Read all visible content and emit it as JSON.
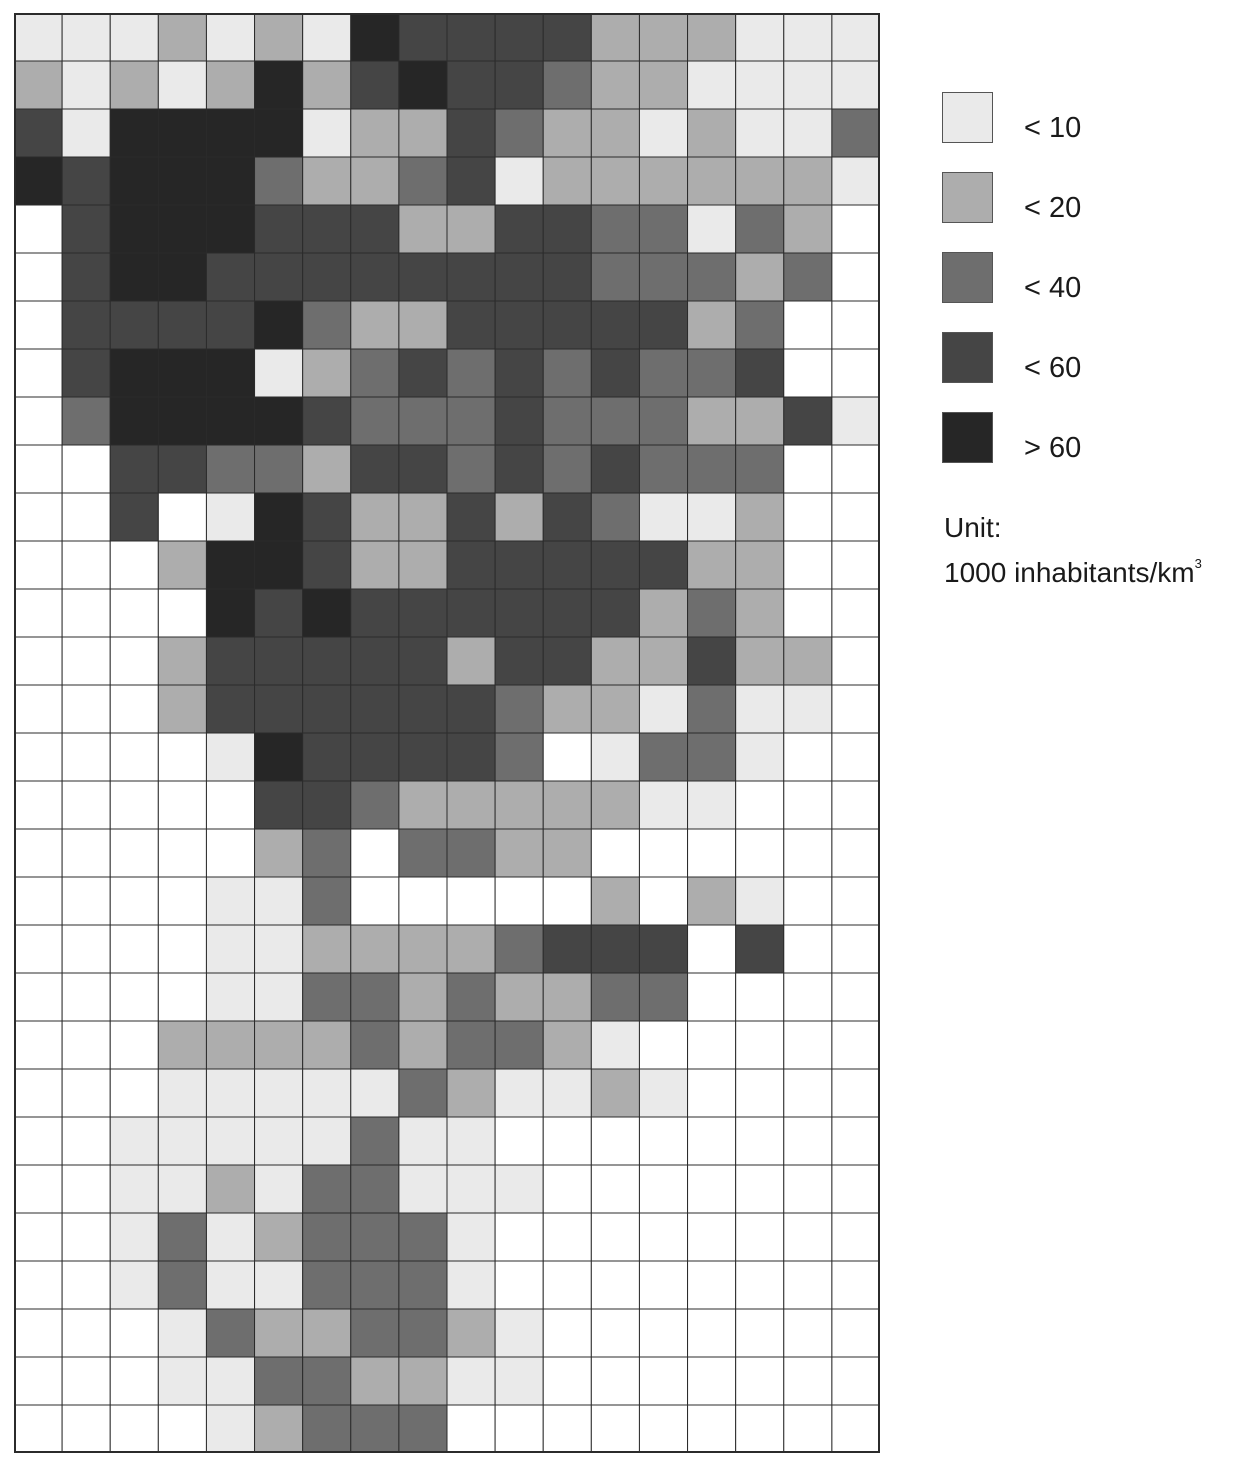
{
  "legend": {
    "items": [
      {
        "label": "< 10",
        "color": "#eaeaea"
      },
      {
        "label": "< 20",
        "color": "#adadad"
      },
      {
        "label": "< 40",
        "color": "#6e6e6e"
      },
      {
        "label": "< 60",
        "color": "#454545"
      },
      {
        "label": "> 60",
        "color": "#262626"
      }
    ]
  },
  "unit": {
    "label": "Unit:",
    "value": "1000 inhabitants/km",
    "superscript": "3"
  },
  "grid": {
    "columns": 18,
    "rows": 30,
    "empty_color": "#ffffff",
    "line_color": "#2b2b2b",
    "cells": [
      "000101043333111000",
      "101014134332110000",
      "304444011321101002",
      "434442112301111110",
      "N3444333113322021N",
      "N3443333333322212N",
      "N333342113333312NN",
      "N344401232323223NN",
      "N24444322232221130",
      "NN33221332323222NN",
      "NN3N043113132001NN",
      "NNN1443113333311NN",
      "NNNN434333333121NN",
      "NNN13333313311311N",
      "NNN13333332110200N",
      "NNNN0433332N0220NN",
      "NNNNN3321111100NNN",
      "NNNNN12N2211NNNNNN",
      "NNNN002NNNNN1N10NN",
      "NNNN0011112333N3NN",
      "NNNN0022121122NNNN",
      "NNN1111212210NNNNN",
      "NNN00000210010NNNN",
      "NN00000200NNNNNNNN",
      "NN001022000NNNNNNN",
      "NN02012220NNNNNNNN",
      "NN02002220NNNNNNNN",
      "NNN02112210NNNNNNN",
      "NNN00221100NNNNNNN",
      "NNNN01222NNNNNNNNN"
    ]
  }
}
